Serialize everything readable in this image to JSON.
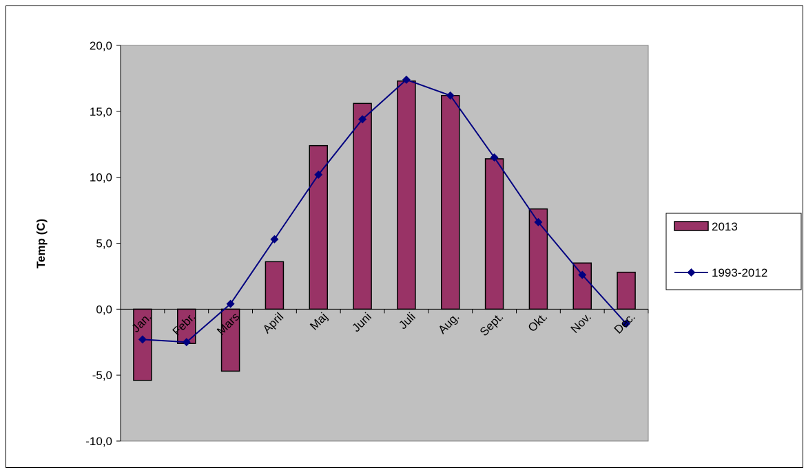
{
  "chart_data": {
    "type": "bar",
    "categories": [
      "Jan.",
      "Febr.",
      "Mars",
      "April",
      "Maj",
      "Juni",
      "Juli",
      "Aug.",
      "Sept.",
      "Okt.",
      "Nov.",
      "Dec."
    ],
    "series": [
      {
        "name": "2013",
        "type": "bar",
        "color": "#993366",
        "values": [
          -5.4,
          -2.6,
          -4.7,
          3.6,
          12.4,
          15.6,
          17.3,
          16.2,
          11.4,
          7.6,
          3.5,
          2.8
        ]
      },
      {
        "name": "1993-2012",
        "type": "line",
        "color": "#000080",
        "marker": "diamond",
        "values": [
          -2.3,
          -2.5,
          0.4,
          5.3,
          10.2,
          14.4,
          17.4,
          16.2,
          11.5,
          6.6,
          2.6,
          -1.1
        ]
      }
    ],
    "ylabel": "Temp (C)",
    "ylim": [
      -10,
      20
    ],
    "yticks": [
      "-10,0",
      "-5,0",
      "0,0",
      "5,0",
      "10,0",
      "15,0",
      "20,0"
    ],
    "plot_background": "#c0c0c0",
    "grid": false,
    "legend_position": "right"
  }
}
